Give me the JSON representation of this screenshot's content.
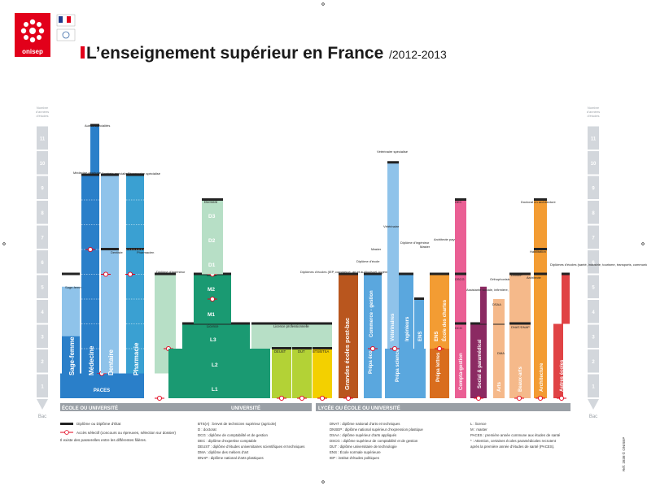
{
  "header": {
    "brand": "onisep",
    "title": "L’enseignement supérieur en France",
    "year": "/2012-2013"
  },
  "scale": {
    "caption_line1": "Nombre",
    "caption_line2": "d’années",
    "caption_line3": "d’études",
    "bottom_label": "Bac",
    "levels": [
      "1",
      "2",
      "3",
      "4",
      "5",
      "6",
      "7",
      "8",
      "9",
      "10",
      "11"
    ]
  },
  "bottom_bands": {
    "left": "ÉCOLE OU UNIVERSITÉ",
    "center": "UNIVERSITÉ",
    "right": "LYCÉE OU ÉCOLE OU UNIVERSITÉ"
  },
  "colors": {
    "health": "#2a7fc9",
    "health_light": "#8fc3ea",
    "university_green": "#1a9a72",
    "university_light": "#b7dfc6",
    "lime": "#b3d236",
    "yellow": "#f3d000",
    "grandes_ecoles": "#b9561e",
    "prepa": "#5aa7de",
    "orange": "#f39c33",
    "pink": "#ea5f94",
    "magenta": "#8b2a62",
    "red": "#e04345",
    "ruler": "#d3d7dc"
  },
  "columns": {
    "sage_femme": {
      "label": "Sage-femme",
      "top": "Sage-femme"
    },
    "medecine": {
      "label": "Médecine",
      "top": "Autres spécialités",
      "mid": "Médecine générale"
    },
    "dentaire": {
      "label": "Dentaire",
      "top": "Dentiste spécialisé",
      "mid": "Dentiste"
    },
    "pharmacie": {
      "label": "Pharmacie",
      "top": "Pharmacien spécialisé",
      "mid": "Pharmacien"
    },
    "paces": "PACES",
    "ingenieur": "Diplôme d’ingénieur",
    "doctorat": "Doctorat",
    "d3": "D3",
    "d2": "D2",
    "d1": "D1",
    "master": "Master",
    "m2": "M2",
    "m1": "M1",
    "licence": "Licence",
    "l3": "L3",
    "l2": "L2",
    "l1": "L1",
    "licence_pro": "Licence professionnelle",
    "deust": "DEUST",
    "dut": "DUT",
    "bts": "BTS/BTSA",
    "diplomes_ecoles": "Diplômes d’écoles (IEP, commerce, art et audiovisuel, ingénieurs…)",
    "grandes_ecoles": "Grandes écoles post-bac",
    "diplome_ecoles": "Diplôme d’école",
    "commerce_gestion": "Commerce - gestion",
    "ens": "ENS",
    "veterinaire_top": "Vétérinaire spécialisé",
    "veterinaire": "Vétérinaire",
    "veterinaires": "Vétérinaires",
    "ingenieurs": "Ingénieurs",
    "diplome_ingenieur": "Diplôme d’ingénieur",
    "ecole_chartes": "École des chartes",
    "architecte_paysagiste": "Architecte paysagiste",
    "prepa_eco": "Prépa éco",
    "prepa_sciences": "Prépa sciences",
    "prepa_lettres": "Prépa lettres",
    "dec": "DEC",
    "dscg": "DSCG",
    "dcg": "DCG",
    "compta_gestion": "Compta-gestion",
    "assistante_sociale": "Assistante sociale, infirmière, kiné…",
    "orthophoniste": "Orthophoniste",
    "social_paramedical": "Social & paramédical",
    "dnsep": "DNSEP",
    "dnap": "DNAP",
    "dmade": "DMA",
    "dsaa": "DSAA",
    "dnat": "DNAT/DNAP",
    "arts": "Arts",
    "beaux_arts": "Beaux-arts",
    "doctorat_archi": "Doctorat en architecture",
    "habilitation": "Habilitation",
    "architecte": "Architecte",
    "architecture": "Architecture",
    "autres_diplomes": "Diplômes d’écoles (santé, industrie, tourisme, transports, communication…)",
    "autres_ecoles": "Autres écoles"
  },
  "legend": {
    "col1": [
      "Diplôme ou Diplôme d’État",
      "Accès sélectif (concours ou épreuves, sélection sur dossier)",
      "Il existe des passerelles entre les différentes filières."
    ],
    "col2": [
      "BTS(A) : brevet de technicien supérieur (agricole)",
      "D : doctorat",
      "DCG : diplôme de comptabilité et de gestion",
      "DEC : diplôme d’expertise comptable",
      "DEUST : diplôme d’études universitaires scientifiques et techniques",
      "DMA : diplôme des métiers d’art",
      "DNAP : diplôme national d’arts plastiques"
    ],
    "col3": [
      "DNAT : diplôme national d’arts et techniques",
      "DNSEP : diplôme national supérieur d’expression plastique",
      "DSAA : diplôme supérieur d’arts appliqués",
      "DSCG : diplôme supérieur de comptabilité et de gestion",
      "DUT : diplôme universitaire de technologie",
      "ENS : École normale supérieure",
      "IEP : institut d’études politiques"
    ],
    "col4": [
      "L : licence",
      "M : master",
      "PACES : première année commune aux études de santé",
      "* : Attention, certaines écoles paramédicales recrutent",
      "après la première année d’études de santé (PACES)."
    ]
  },
  "side_note": "Réf. 2838 © ONISEP"
}
